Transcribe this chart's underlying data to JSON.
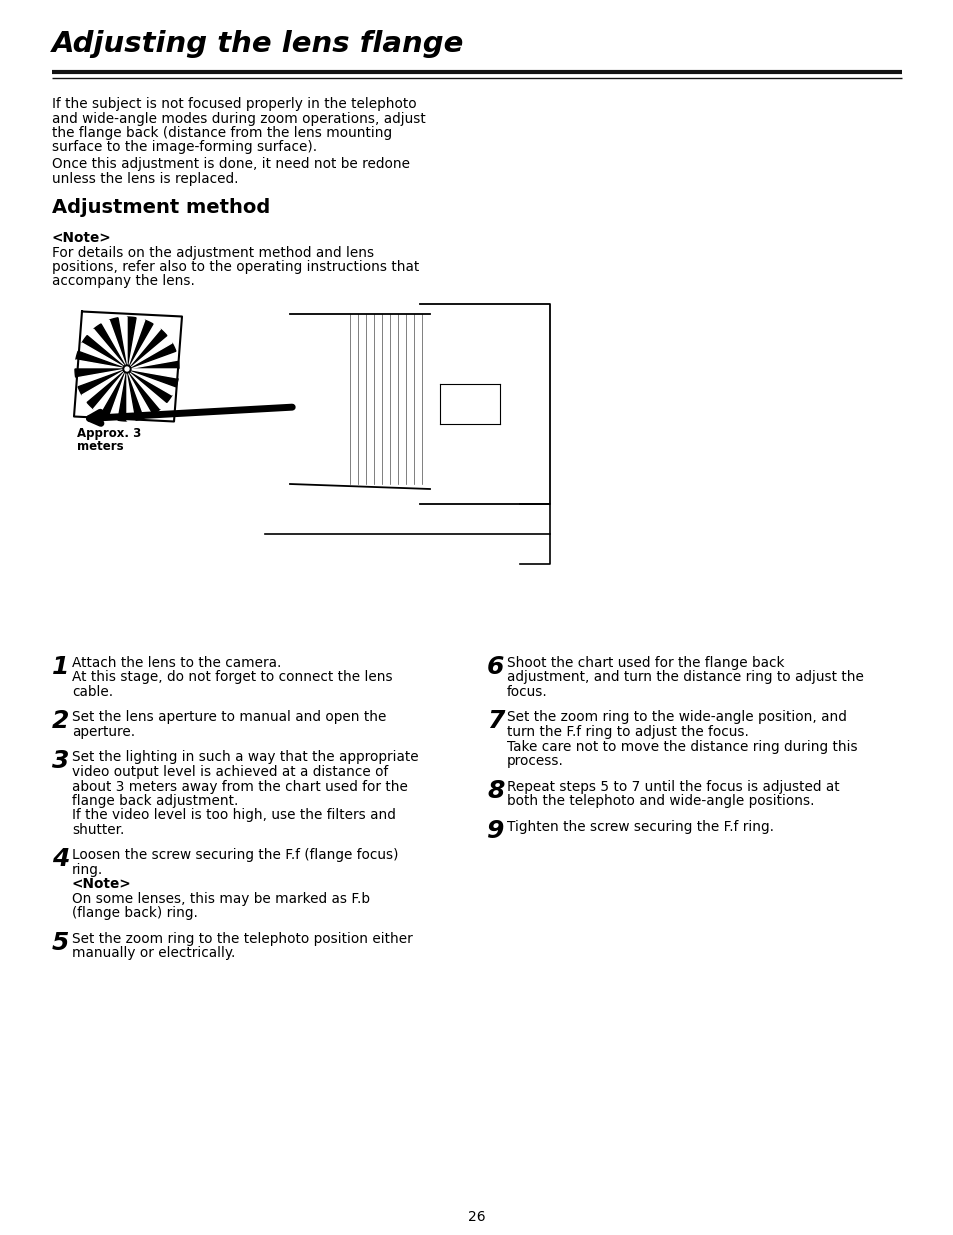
{
  "title": "Adjusting the lens flange",
  "bg_color": "#ffffff",
  "text_color": "#000000",
  "page_number": "26",
  "intro_para1": "If the subject is not focused properly in the telephoto\nand wide-angle modes during zoom operations, adjust\nthe flange back (distance from the lens mounting\nsurface to the image-forming surface).",
  "intro_para2": "Once this adjustment is done, it need not be redone\nunless the lens is replaced.",
  "section_title": "Adjustment method",
  "note_label": "<Note>",
  "note_text_line1": "For details on the adjustment method and lens",
  "note_text_line2": "positions, refer also to the operating instructions that",
  "note_text_line3": "accompany the lens.",
  "approx_label_line1": "Approx. 3",
  "approx_label_line2": "meters",
  "steps_left": [
    {
      "num": "1",
      "first_line": "Attach the lens to the camera.",
      "rest": [
        "At this stage, do not forget to connect the lens",
        "cable."
      ],
      "extra": []
    },
    {
      "num": "2",
      "first_line": "Set the lens aperture to manual and open the",
      "rest": [
        "aperture."
      ],
      "extra": []
    },
    {
      "num": "3",
      "first_line": "Set the lighting in such a way that the appropriate",
      "rest": [
        "video output level is achieved at a distance of",
        "about 3 meters away from the chart used for the",
        "flange back adjustment."
      ],
      "extra": [
        "If the video level is too high, use the filters and",
        "shutter."
      ]
    },
    {
      "num": "4",
      "first_line": "Loosen the screw securing the F.f (flange focus)",
      "rest": [
        "ring."
      ],
      "extra": [
        "<Note>",
        "On some lenses, this may be marked as F.b",
        "(flange back) ring."
      ]
    },
    {
      "num": "5",
      "first_line": "Set the zoom ring to the telephoto position either",
      "rest": [
        "manually or electrically."
      ],
      "extra": []
    }
  ],
  "steps_right": [
    {
      "num": "6",
      "first_line": "Shoot the chart used for the flange back",
      "rest": [
        "adjustment, and turn the distance ring to adjust the",
        "focus."
      ],
      "extra": []
    },
    {
      "num": "7",
      "first_line": "Set the zoom ring to the wide-angle position, and",
      "rest": [
        "turn the F.f ring to adjust the focus."
      ],
      "extra": [
        "Take care not to move the distance ring during this",
        "process."
      ]
    },
    {
      "num": "8",
      "first_line": "Repeat steps 5 to 7 until the focus is adjusted at",
      "rest": [
        "both the telephoto and wide-angle positions."
      ],
      "extra": []
    },
    {
      "num": "9",
      "first_line": "Tighten the screw securing the F.f ring.",
      "rest": [],
      "extra": []
    }
  ]
}
